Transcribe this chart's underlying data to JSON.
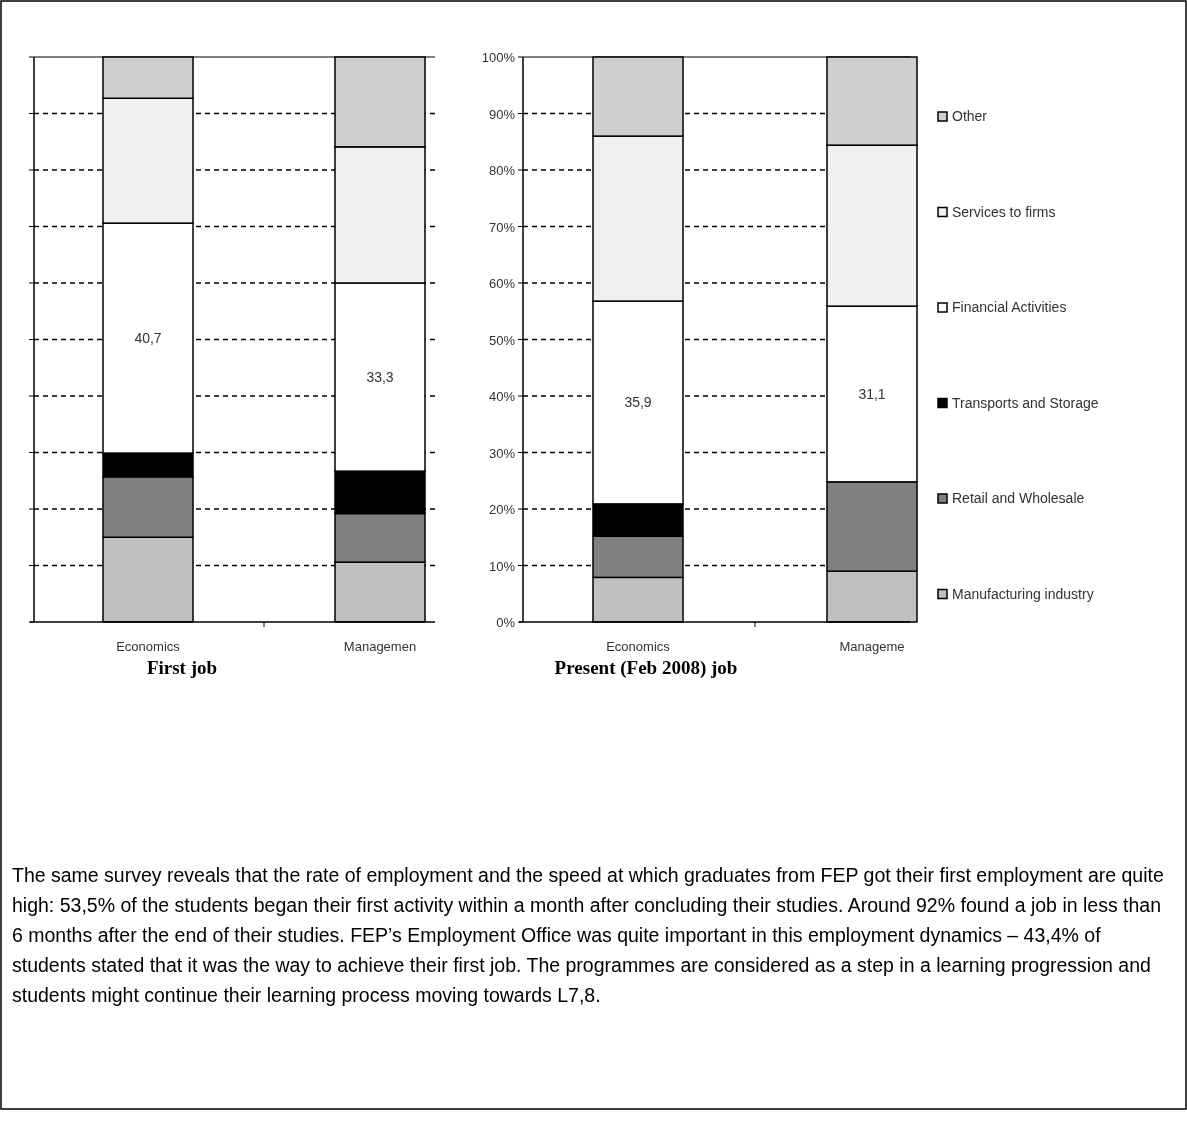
{
  "chart_data": [
    {
      "type": "bar",
      "title": "First job",
      "stacked": true,
      "categories": [
        "Economics",
        "Managemen"
      ],
      "ylim": [
        0,
        100
      ],
      "yticks": [
        0,
        10,
        20,
        30,
        40,
        50,
        60,
        70,
        80,
        90,
        100
      ],
      "tick_labels": "x",
      "grid": "y",
      "legend": false,
      "series": [
        {
          "color": "#c0c0c0",
          "values": [
            15,
            10.6
          ]
        },
        {
          "color": "#808080",
          "values": [
            10.7,
            8.6
          ]
        },
        {
          "color": "#000000",
          "values": [
            4.2,
            7.5
          ]
        },
        {
          "color": "#ffffff",
          "values": [
            40.7,
            33.3
          ],
          "value_labels": [
            "40,7",
            "33,3"
          ]
        },
        {
          "color": "#f0f0f0",
          "values": [
            22.1,
            24.1
          ]
        },
        {
          "color": "#cfcfcf",
          "values": [
            7.3,
            15.9
          ]
        }
      ],
      "annotations": [
        "The same survey reveals that the rate of employment and the speed at which graduates from FEP got their first employment are quite high: 53,5% of the students began their first activity within a month after concluding their studies. Around 92% found a job in less than 6 months after the end of their studies. FEP’s Employment Office was quite important in this employment dynamics – 43,4% of students stated that it was the way to achieve their first job. The programmes are considered as a step in a learning progression and students might continue their learning process moving towards L7,8."
      ]
    },
    {
      "type": "bar",
      "title": "Present (Feb 2008) job",
      "stacked": true,
      "categories": [
        "Economics",
        "Manageme"
      ],
      "ylim": [
        0,
        100
      ],
      "yticks": [
        {
          "value": 0,
          "label": "0%"
        },
        {
          "value": 10,
          "label": "10%"
        },
        {
          "value": 20,
          "label": "20%"
        },
        {
          "value": 30,
          "label": "30%"
        },
        {
          "value": 40,
          "label": "40%"
        },
        {
          "value": 50,
          "label": "50%"
        },
        {
          "value": 60,
          "label": "60%"
        },
        {
          "value": 70,
          "label": "70%"
        },
        {
          "value": 80,
          "label": "80%"
        },
        {
          "value": 90,
          "label": "90%"
        },
        {
          "value": 100,
          "label": "100%"
        }
      ],
      "grid": "y",
      "legend": "right",
      "series": [
        {
          "name": "Manufacturing industry",
          "color": "#c0c0c0",
          "values": [
            7.9,
            9.0
          ]
        },
        {
          "name": "Retail and Wholesale",
          "color": "#808080",
          "values": [
            7.3,
            15.8
          ]
        },
        {
          "name": "Transports and Storage",
          "color": "#000000",
          "values": [
            5.7,
            0
          ]
        },
        {
          "name": "Financial Activities",
          "color": "#ffffff",
          "values": [
            35.9,
            31.1
          ],
          "value_labels": [
            "35,9",
            "31,1"
          ]
        },
        {
          "name": "Services to firms",
          "color": "#f0f0f0",
          "values": [
            29.2,
            28.5
          ]
        },
        {
          "name": "Other",
          "color": "#cfcfcf",
          "values": [
            14.0,
            15.6
          ]
        }
      ]
    }
  ]
}
